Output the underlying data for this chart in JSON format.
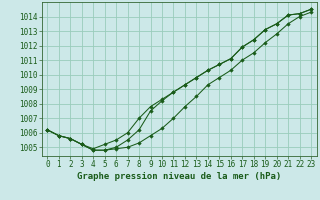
{
  "bg_color": "#cce8e8",
  "grid_color": "#99ccbb",
  "line_color": "#1a5c1a",
  "marker_color": "#1a5c1a",
  "title": "Graphe pression niveau de la mer (hPa)",
  "tick_fontsize": 5.5,
  "title_fontsize": 6.5,
  "xlim": [
    -0.5,
    23.5
  ],
  "ylim": [
    1004.4,
    1015.0
  ],
  "yticks": [
    1005,
    1006,
    1007,
    1008,
    1009,
    1010,
    1011,
    1012,
    1013,
    1014
  ],
  "xticks": [
    0,
    1,
    2,
    3,
    4,
    5,
    6,
    7,
    8,
    9,
    10,
    11,
    12,
    13,
    14,
    15,
    16,
    17,
    18,
    19,
    20,
    21,
    22,
    23
  ],
  "series": [
    [
      1006.2,
      1005.8,
      1005.6,
      1005.2,
      1004.8,
      1004.8,
      1005.0,
      1005.5,
      1006.2,
      1007.5,
      1008.2,
      1008.8,
      1009.3,
      1009.8,
      1010.3,
      1010.7,
      1011.1,
      1011.9,
      1012.4,
      1013.1,
      1013.5,
      1014.1,
      1014.2,
      1014.5
    ],
    [
      1006.2,
      1005.8,
      1005.6,
      1005.2,
      1004.9,
      1005.2,
      1005.5,
      1006.0,
      1007.0,
      1007.8,
      1008.3,
      1008.8,
      1009.3,
      1009.8,
      1010.3,
      1010.7,
      1011.1,
      1011.9,
      1012.4,
      1013.1,
      1013.5,
      1014.1,
      1014.2,
      1014.5
    ],
    [
      1006.2,
      1005.8,
      1005.6,
      1005.2,
      1004.8,
      1004.8,
      1004.9,
      1005.0,
      1005.3,
      1005.8,
      1006.3,
      1007.0,
      1007.8,
      1008.5,
      1009.3,
      1009.8,
      1010.3,
      1011.0,
      1011.5,
      1012.2,
      1012.8,
      1013.5,
      1014.0,
      1014.3
    ]
  ]
}
